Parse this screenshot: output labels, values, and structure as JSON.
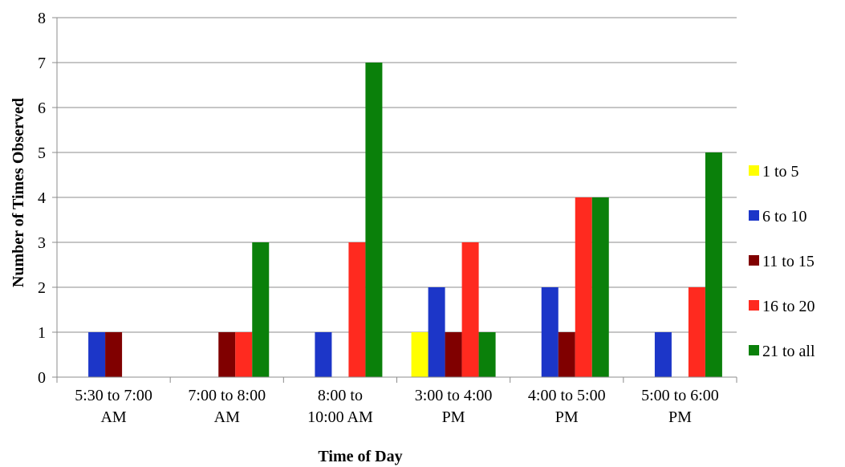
{
  "chart_data": {
    "type": "bar",
    "title": "",
    "xlabel": "Time of Day",
    "ylabel": "Number of Times Observed",
    "ylim": [
      0,
      8
    ],
    "yticks": [
      "0",
      "1",
      "2",
      "3",
      "4",
      "5",
      "6",
      "7",
      "8"
    ],
    "grid": true,
    "legend_position": "right",
    "categories": [
      [
        "5:30 to 7:00",
        "AM"
      ],
      [
        "7:00 to 8:00",
        "AM"
      ],
      [
        "8:00 to",
        "10:00 AM"
      ],
      [
        "3:00 to 4:00",
        "PM"
      ],
      [
        "4:00 to 5:00",
        "PM"
      ],
      [
        "5:00 to 6:00",
        "PM"
      ]
    ],
    "series": [
      {
        "name": "1 to 5",
        "color": "#FFFF00",
        "values": [
          0,
          0,
          0,
          1,
          0,
          0
        ]
      },
      {
        "name": "6 to 10",
        "color": "#1C36C8",
        "values": [
          1,
          0,
          1,
          2,
          2,
          1
        ]
      },
      {
        "name": "11 to 15",
        "color": "#800000",
        "values": [
          1,
          1,
          0,
          1,
          1,
          0
        ]
      },
      {
        "name": "16 to 20",
        "color": "#FF2A1F",
        "values": [
          0,
          1,
          3,
          3,
          4,
          2
        ]
      },
      {
        "name": "21 to all",
        "color": "#0A800A",
        "values": [
          0,
          3,
          7,
          1,
          4,
          5
        ]
      }
    ]
  }
}
